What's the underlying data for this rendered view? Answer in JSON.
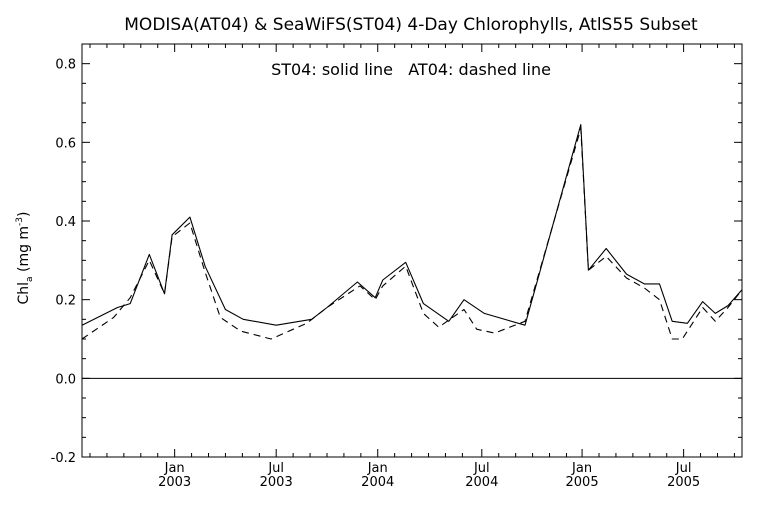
{
  "chart_data": {
    "type": "line",
    "title": "MODISA(AT04) & SeaWiFS(ST04) 4-Day Chlorophylls, AtlS55 Subset",
    "annotation": "ST04: solid line   AT04: dashed line",
    "ylabel": {
      "main": "Chl",
      "sub": "a",
      "unit_open": " (mg m",
      "unit_sup": "-3",
      "unit_close": ")"
    },
    "xlabel": "",
    "xlim": [
      0,
      26
    ],
    "ylim": [
      -0.2,
      0.85
    ],
    "yticks": [
      {
        "value": -0.2,
        "label": "-0.2"
      },
      {
        "value": 0.0,
        "label": "0.0"
      },
      {
        "value": 0.2,
        "label": "0.2"
      },
      {
        "value": 0.4,
        "label": "0.4"
      },
      {
        "value": 0.6,
        "label": "0.6"
      },
      {
        "value": 0.8,
        "label": "0.8"
      }
    ],
    "xticks": [
      {
        "value": 3.65,
        "month": "Jan",
        "year": "2003"
      },
      {
        "value": 7.65,
        "month": "Jul",
        "year": "2003"
      },
      {
        "value": 11.65,
        "month": "Jan",
        "year": "2004"
      },
      {
        "value": 15.75,
        "month": "Jul",
        "year": "2004"
      },
      {
        "value": 19.7,
        "month": "Jan",
        "year": "2005"
      },
      {
        "value": 23.7,
        "month": "Jul",
        "year": "2005"
      }
    ],
    "reference_line": 0.0,
    "grid": false,
    "series": [
      {
        "name": "ST04",
        "style": "solid",
        "x": [
          0,
          1.4,
          1.9,
          2.65,
          3.25,
          3.55,
          4.25,
          4.85,
          5.65,
          6.35,
          7.65,
          9.05,
          9.65,
          10.85,
          11.55,
          11.85,
          12.75,
          13.45,
          14.45,
          15.05,
          15.85,
          17.45,
          19.65,
          19.95,
          20.65,
          21.45,
          22.15,
          22.75,
          23.25,
          23.85,
          24.45,
          24.95,
          25.45,
          26.0
        ],
        "y": [
          0.135,
          0.18,
          0.19,
          0.315,
          0.215,
          0.365,
          0.41,
          0.285,
          0.175,
          0.15,
          0.135,
          0.15,
          0.18,
          0.245,
          0.205,
          0.25,
          0.295,
          0.19,
          0.145,
          0.2,
          0.165,
          0.135,
          0.645,
          0.275,
          0.33,
          0.265,
          0.24,
          0.24,
          0.145,
          0.14,
          0.195,
          0.165,
          0.185,
          0.225
        ]
      },
      {
        "name": "AT04",
        "style": "dashed",
        "x": [
          0,
          1.25,
          1.9,
          2.65,
          3.25,
          3.55,
          4.25,
          4.85,
          5.45,
          6.25,
          7.45,
          8.85,
          9.65,
          10.95,
          11.55,
          11.85,
          12.75,
          13.45,
          14.05,
          15.05,
          15.55,
          16.25,
          17.45,
          19.65,
          19.95,
          20.65,
          21.45,
          22.15,
          22.75,
          23.25,
          23.65,
          24.45,
          24.95,
          25.45,
          26.0
        ],
        "y": [
          0.1,
          0.155,
          0.205,
          0.3,
          0.215,
          0.36,
          0.395,
          0.27,
          0.155,
          0.12,
          0.1,
          0.14,
          0.18,
          0.235,
          0.2,
          0.235,
          0.285,
          0.165,
          0.13,
          0.175,
          0.125,
          0.115,
          0.145,
          0.635,
          0.275,
          0.31,
          0.255,
          0.23,
          0.2,
          0.1,
          0.1,
          0.18,
          0.145,
          0.18,
          0.225
        ]
      }
    ]
  }
}
